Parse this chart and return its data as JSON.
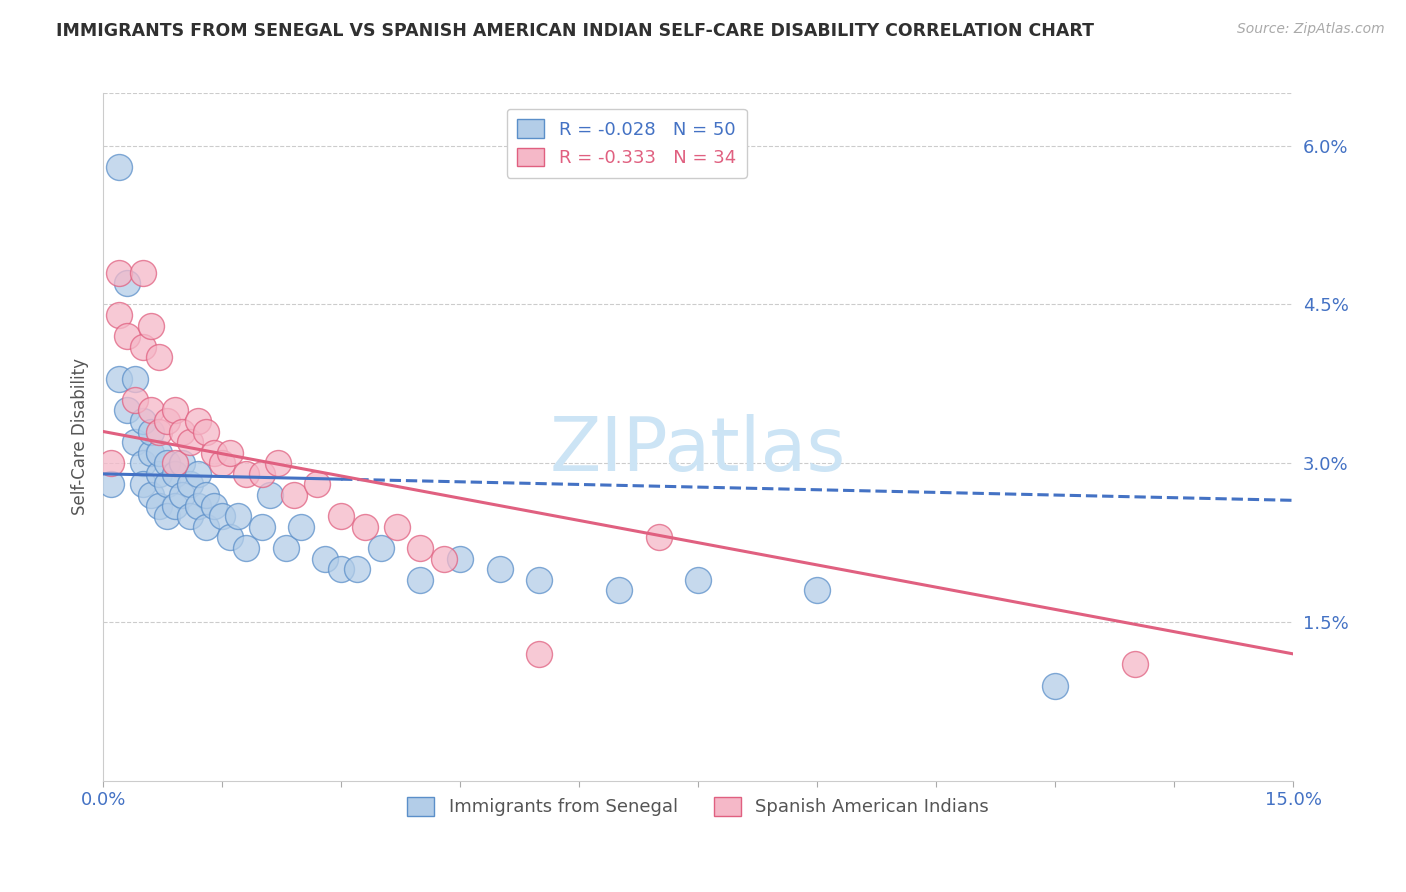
{
  "title": "IMMIGRANTS FROM SENEGAL VS SPANISH AMERICAN INDIAN SELF-CARE DISABILITY CORRELATION CHART",
  "source": "Source: ZipAtlas.com",
  "ylabel": "Self-Care Disability",
  "xlim": [
    0.0,
    0.15
  ],
  "ylim": [
    0.0,
    0.065
  ],
  "yticks": [
    0.015,
    0.03,
    0.045,
    0.06
  ],
  "ytick_labels": [
    "1.5%",
    "3.0%",
    "4.5%",
    "6.0%"
  ],
  "xticks": [
    0.0,
    0.015,
    0.03,
    0.045,
    0.06,
    0.075,
    0.09,
    0.105,
    0.12,
    0.135,
    0.15
  ],
  "xtick_labels": [
    "0.0%",
    "",
    "",
    "",
    "",
    "",
    "",
    "",
    "",
    "",
    "15.0%"
  ],
  "series1_label": "Immigrants from Senegal",
  "series1_color": "#b3cde8",
  "series1_edge": "#5b8fc9",
  "series1_R": "-0.028",
  "series1_N": "50",
  "series1_line_color": "#4472c4",
  "series2_label": "Spanish American Indians",
  "series2_color": "#f5b8c8",
  "series2_edge": "#e06080",
  "series2_R": "-0.333",
  "series2_N": "34",
  "series2_line_color": "#e06080",
  "watermark_text": "ZIPatlas",
  "watermark_color": "#cce4f5",
  "background_color": "#ffffff",
  "grid_color": "#cccccc",
  "axis_color": "#4472c4",
  "title_color": "#303030",
  "series1_x": [
    0.001,
    0.002,
    0.002,
    0.003,
    0.003,
    0.004,
    0.004,
    0.005,
    0.005,
    0.005,
    0.006,
    0.006,
    0.006,
    0.007,
    0.007,
    0.007,
    0.008,
    0.008,
    0.008,
    0.009,
    0.009,
    0.01,
    0.01,
    0.011,
    0.011,
    0.012,
    0.012,
    0.013,
    0.013,
    0.014,
    0.015,
    0.016,
    0.017,
    0.018,
    0.02,
    0.021,
    0.023,
    0.025,
    0.028,
    0.03,
    0.032,
    0.035,
    0.04,
    0.045,
    0.05,
    0.055,
    0.065,
    0.075,
    0.09,
    0.12
  ],
  "series1_y": [
    0.028,
    0.058,
    0.038,
    0.047,
    0.035,
    0.032,
    0.038,
    0.03,
    0.034,
    0.028,
    0.031,
    0.033,
    0.027,
    0.029,
    0.031,
    0.026,
    0.03,
    0.028,
    0.025,
    0.029,
    0.026,
    0.03,
    0.027,
    0.028,
    0.025,
    0.029,
    0.026,
    0.027,
    0.024,
    0.026,
    0.025,
    0.023,
    0.025,
    0.022,
    0.024,
    0.027,
    0.022,
    0.024,
    0.021,
    0.02,
    0.02,
    0.022,
    0.019,
    0.021,
    0.02,
    0.019,
    0.018,
    0.019,
    0.018,
    0.009
  ],
  "series2_x": [
    0.001,
    0.002,
    0.002,
    0.003,
    0.004,
    0.005,
    0.005,
    0.006,
    0.006,
    0.007,
    0.007,
    0.008,
    0.009,
    0.009,
    0.01,
    0.011,
    0.012,
    0.013,
    0.014,
    0.015,
    0.016,
    0.018,
    0.02,
    0.022,
    0.024,
    0.027,
    0.03,
    0.033,
    0.037,
    0.04,
    0.043,
    0.055,
    0.07,
    0.13
  ],
  "series2_y": [
    0.03,
    0.044,
    0.048,
    0.042,
    0.036,
    0.048,
    0.041,
    0.043,
    0.035,
    0.04,
    0.033,
    0.034,
    0.035,
    0.03,
    0.033,
    0.032,
    0.034,
    0.033,
    0.031,
    0.03,
    0.031,
    0.029,
    0.029,
    0.03,
    0.027,
    0.028,
    0.025,
    0.024,
    0.024,
    0.022,
    0.021,
    0.012,
    0.023,
    0.011
  ],
  "line1_start_y": 0.029,
  "line1_end_y": 0.0265,
  "line2_start_y": 0.033,
  "line2_end_y": 0.012
}
